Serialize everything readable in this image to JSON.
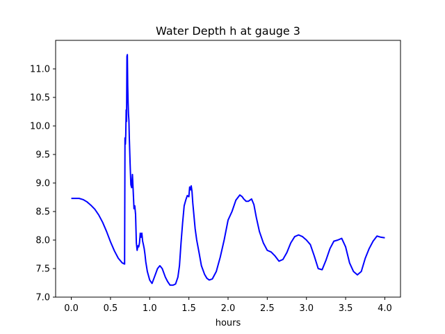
{
  "chart_data": {
    "type": "line",
    "title": "Water Depth h at gauge 3",
    "xlabel": "hours",
    "ylabel": "",
    "xlim": [
      -0.2,
      4.2
    ],
    "ylim": [
      7.0,
      11.5
    ],
    "x_ticks": [
      0.0,
      0.5,
      1.0,
      1.5,
      2.0,
      2.5,
      3.0,
      3.5,
      4.0
    ],
    "x_tick_labels": [
      "0.0",
      "0.5",
      "1.0",
      "1.5",
      "2.0",
      "2.5",
      "3.0",
      "3.5",
      "4.0"
    ],
    "y_ticks": [
      7.0,
      7.5,
      8.0,
      8.5,
      9.0,
      9.5,
      10.0,
      10.5,
      11.0
    ],
    "y_tick_labels": [
      "7.0",
      "7.5",
      "8.0",
      "8.5",
      "9.0",
      "9.5",
      "10.0",
      "10.5",
      "11.0"
    ],
    "grid": false,
    "legend": "none",
    "series": [
      {
        "color": "#0000ff",
        "x": [
          0.0,
          0.05,
          0.1,
          0.15,
          0.2,
          0.25,
          0.3,
          0.35,
          0.4,
          0.45,
          0.5,
          0.55,
          0.6,
          0.65,
          0.68,
          0.685,
          0.69,
          0.695,
          0.7,
          0.705,
          0.71,
          0.715,
          0.72,
          0.725,
          0.73,
          0.735,
          0.74,
          0.75,
          0.76,
          0.77,
          0.78,
          0.79,
          0.8,
          0.81,
          0.82,
          0.83,
          0.84,
          0.85,
          0.86,
          0.87,
          0.88,
          0.89,
          0.9,
          0.91,
          0.92,
          0.93,
          0.94,
          0.95,
          0.97,
          1.0,
          1.03,
          1.06,
          1.1,
          1.13,
          1.16,
          1.2,
          1.23,
          1.26,
          1.3,
          1.33,
          1.36,
          1.38,
          1.4,
          1.42,
          1.44,
          1.46,
          1.48,
          1.5,
          1.51,
          1.52,
          1.53,
          1.54,
          1.55,
          1.56,
          1.58,
          1.6,
          1.63,
          1.66,
          1.7,
          1.73,
          1.76,
          1.8,
          1.85,
          1.9,
          1.95,
          2.0,
          2.05,
          2.1,
          2.15,
          2.18,
          2.2,
          2.23,
          2.26,
          2.3,
          2.33,
          2.36,
          2.4,
          2.45,
          2.5,
          2.55,
          2.6,
          2.65,
          2.7,
          2.75,
          2.8,
          2.85,
          2.9,
          2.95,
          3.0,
          3.05,
          3.1,
          3.15,
          3.2,
          3.25,
          3.3,
          3.35,
          3.4,
          3.45,
          3.5,
          3.55,
          3.6,
          3.65,
          3.7,
          3.75,
          3.8,
          3.85,
          3.9,
          3.95,
          4.0
        ],
        "y": [
          8.73,
          8.73,
          8.73,
          8.71,
          8.67,
          8.61,
          8.54,
          8.44,
          8.31,
          8.15,
          7.97,
          7.81,
          7.68,
          7.6,
          7.58,
          9.79,
          9.68,
          9.85,
          10.28,
          10.08,
          11.22,
          11.25,
          10.7,
          10.4,
          10.2,
          10.1,
          9.8,
          9.35,
          8.97,
          8.92,
          9.15,
          8.85,
          8.55,
          8.6,
          8.45,
          7.95,
          7.82,
          7.9,
          7.88,
          7.95,
          8.12,
          8.05,
          8.12,
          7.98,
          7.92,
          7.85,
          7.75,
          7.62,
          7.45,
          7.3,
          7.24,
          7.35,
          7.5,
          7.55,
          7.5,
          7.35,
          7.27,
          7.21,
          7.21,
          7.23,
          7.35,
          7.55,
          7.95,
          8.3,
          8.6,
          8.7,
          8.78,
          8.76,
          8.93,
          8.88,
          8.95,
          8.85,
          8.65,
          8.5,
          8.2,
          8.0,
          7.78,
          7.55,
          7.4,
          7.33,
          7.3,
          7.32,
          7.45,
          7.7,
          8.0,
          8.35,
          8.5,
          8.7,
          8.79,
          8.76,
          8.72,
          8.68,
          8.68,
          8.72,
          8.62,
          8.4,
          8.15,
          7.95,
          7.82,
          7.79,
          7.72,
          7.63,
          7.66,
          7.78,
          7.95,
          8.06,
          8.09,
          8.06,
          8.0,
          7.92,
          7.72,
          7.5,
          7.48,
          7.65,
          7.85,
          7.98,
          8.0,
          8.03,
          7.88,
          7.6,
          7.45,
          7.39,
          7.45,
          7.68,
          7.85,
          7.98,
          8.07,
          8.05,
          8.04
        ]
      }
    ]
  }
}
